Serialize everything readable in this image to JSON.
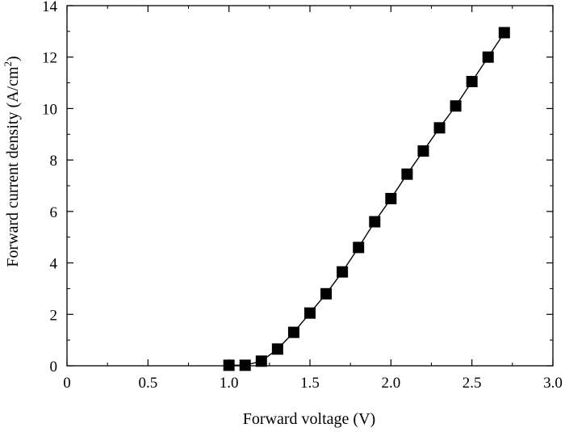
{
  "chart_data": {
    "type": "scatter",
    "title": "",
    "xlabel": "Forward voltage (V)",
    "ylabel_main": "Forward current density (A/cm",
    "ylabel_sup": "2",
    "ylabel_close": ")",
    "xlim": [
      0,
      3.0
    ],
    "ylim": [
      0,
      14
    ],
    "x_ticks": [
      "0",
      "0.5",
      "1.0",
      "1.5",
      "2.0",
      "2.5",
      "3.0"
    ],
    "x_tick_values": [
      0,
      0.5,
      1.0,
      1.5,
      2.0,
      2.5,
      3.0
    ],
    "y_ticks": [
      "0",
      "2",
      "4",
      "6",
      "8",
      "10",
      "12",
      "14"
    ],
    "y_tick_values": [
      0,
      2,
      4,
      6,
      8,
      10,
      12,
      14
    ],
    "grid": false,
    "legend": "none",
    "marker": "square",
    "marker_color": "#000000",
    "line_color": "#000000",
    "series": [
      {
        "x": [
          1.0,
          1.1,
          1.2,
          1.3,
          1.4,
          1.5,
          1.6,
          1.7,
          1.8,
          1.9,
          2.0,
          2.1,
          2.2,
          2.3,
          2.4,
          2.5,
          2.6,
          2.7
        ],
        "y": [
          0.02,
          0.02,
          0.18,
          0.65,
          1.3,
          2.05,
          2.8,
          3.65,
          4.6,
          5.6,
          6.5,
          7.45,
          8.35,
          9.25,
          10.1,
          11.05,
          12.0,
          12.95
        ]
      }
    ]
  }
}
